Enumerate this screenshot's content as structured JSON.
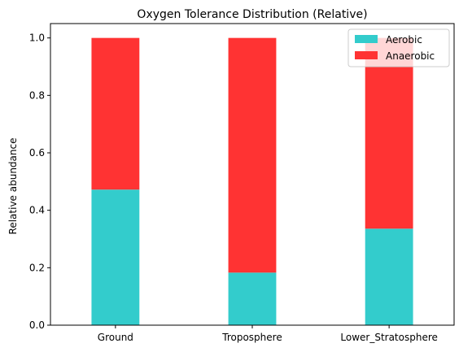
{
  "chart_data": {
    "type": "bar",
    "stacked": true,
    "title": "Oxygen Tolerance Distribution (Relative)",
    "xlabel": "",
    "ylabel": "Relative abundance",
    "categories": [
      "Ground",
      "Troposphere",
      "Lower_Stratosphere"
    ],
    "series": [
      {
        "name": "Aerobic",
        "values": [
          0.472,
          0.183,
          0.336
        ],
        "color": "#33cccc"
      },
      {
        "name": "Anaerobic",
        "values": [
          0.528,
          0.817,
          0.664
        ],
        "color": "#ff3333"
      }
    ],
    "ylim": [
      0.0,
      1.05
    ],
    "yticks": [
      "0.0",
      "0.2",
      "0.4",
      "0.6",
      "0.8",
      "1.0"
    ],
    "grid": false,
    "legend_position": "top-right"
  }
}
